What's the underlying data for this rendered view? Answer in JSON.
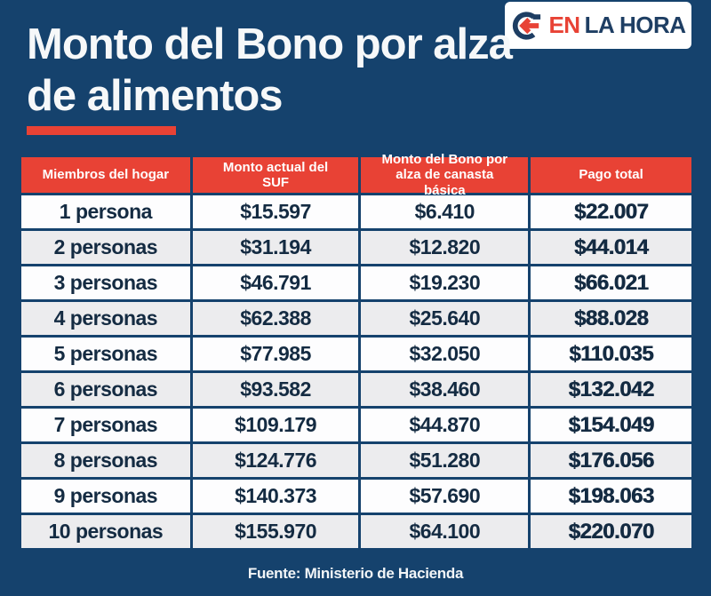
{
  "page": {
    "title_line1": "Monto del Bono por alza",
    "title_line2": "de alimentos",
    "source": "Fuente: Ministerio de Hacienda"
  },
  "logo": {
    "brand_part1": "EN",
    "brand_part2": "LA HORA",
    "icon": "enlahora-arrow-icon"
  },
  "colors": {
    "background_navy": "#15426d",
    "accent_red": "#e84235",
    "logo_navy": "#1e3e63",
    "row_white": "#fdfdfe",
    "row_alt_gray": "#ececee",
    "cell_text_navy": "#142b42",
    "header_text": "#ffffff"
  },
  "table": {
    "headers": [
      "Miembros del hogar",
      "Monto actual del SUF",
      "Monto del Bono por alza de canasta básica",
      "Pago total"
    ],
    "rows": [
      [
        "1 persona",
        "$15.597",
        "$6.410",
        "$22.007"
      ],
      [
        "2 personas",
        "$31.194",
        "$12.820",
        "$44.014"
      ],
      [
        "3 personas",
        "$46.791",
        "$19.230",
        "$66.021"
      ],
      [
        "4 personas",
        "$62.388",
        "$25.640",
        "$88.028"
      ],
      [
        "5 personas",
        "$77.985",
        "$32.050",
        "$110.035"
      ],
      [
        "6 personas",
        "$93.582",
        "$38.460",
        "$132.042"
      ],
      [
        "7 personas",
        "$109.179",
        "$44.870",
        "$154.049"
      ],
      [
        "8 personas",
        "$124.776",
        "$51.280",
        "$176.056"
      ],
      [
        "9 personas",
        "$140.373",
        "$57.690",
        "$198.063"
      ],
      [
        "10 personas",
        "$155.970",
        "$64.100",
        "$220.070"
      ]
    ]
  },
  "chart_data": {
    "type": "table",
    "title": "Monto del Bono por alza de alimentos",
    "columns": [
      "Miembros del hogar",
      "Monto actual del SUF",
      "Monto del Bono por alza de canasta básica",
      "Pago total"
    ],
    "rows": [
      [
        "1 persona",
        15597,
        6410,
        22007
      ],
      [
        "2 personas",
        31194,
        12820,
        44014
      ],
      [
        "3 personas",
        46791,
        19230,
        66021
      ],
      [
        "4 personas",
        62388,
        25640,
        88028
      ],
      [
        "5 personas",
        77985,
        32050,
        110035
      ],
      [
        "6 personas",
        93582,
        38460,
        132042
      ],
      [
        "7 personas",
        109179,
        44870,
        154049
      ],
      [
        "8 personas",
        124776,
        51280,
        176056
      ],
      [
        "9 personas",
        140373,
        57690,
        198063
      ],
      [
        "10 personas",
        155970,
        64100,
        220070
      ]
    ],
    "currency": "CLP",
    "source": "Fuente: Ministerio de Hacienda"
  }
}
